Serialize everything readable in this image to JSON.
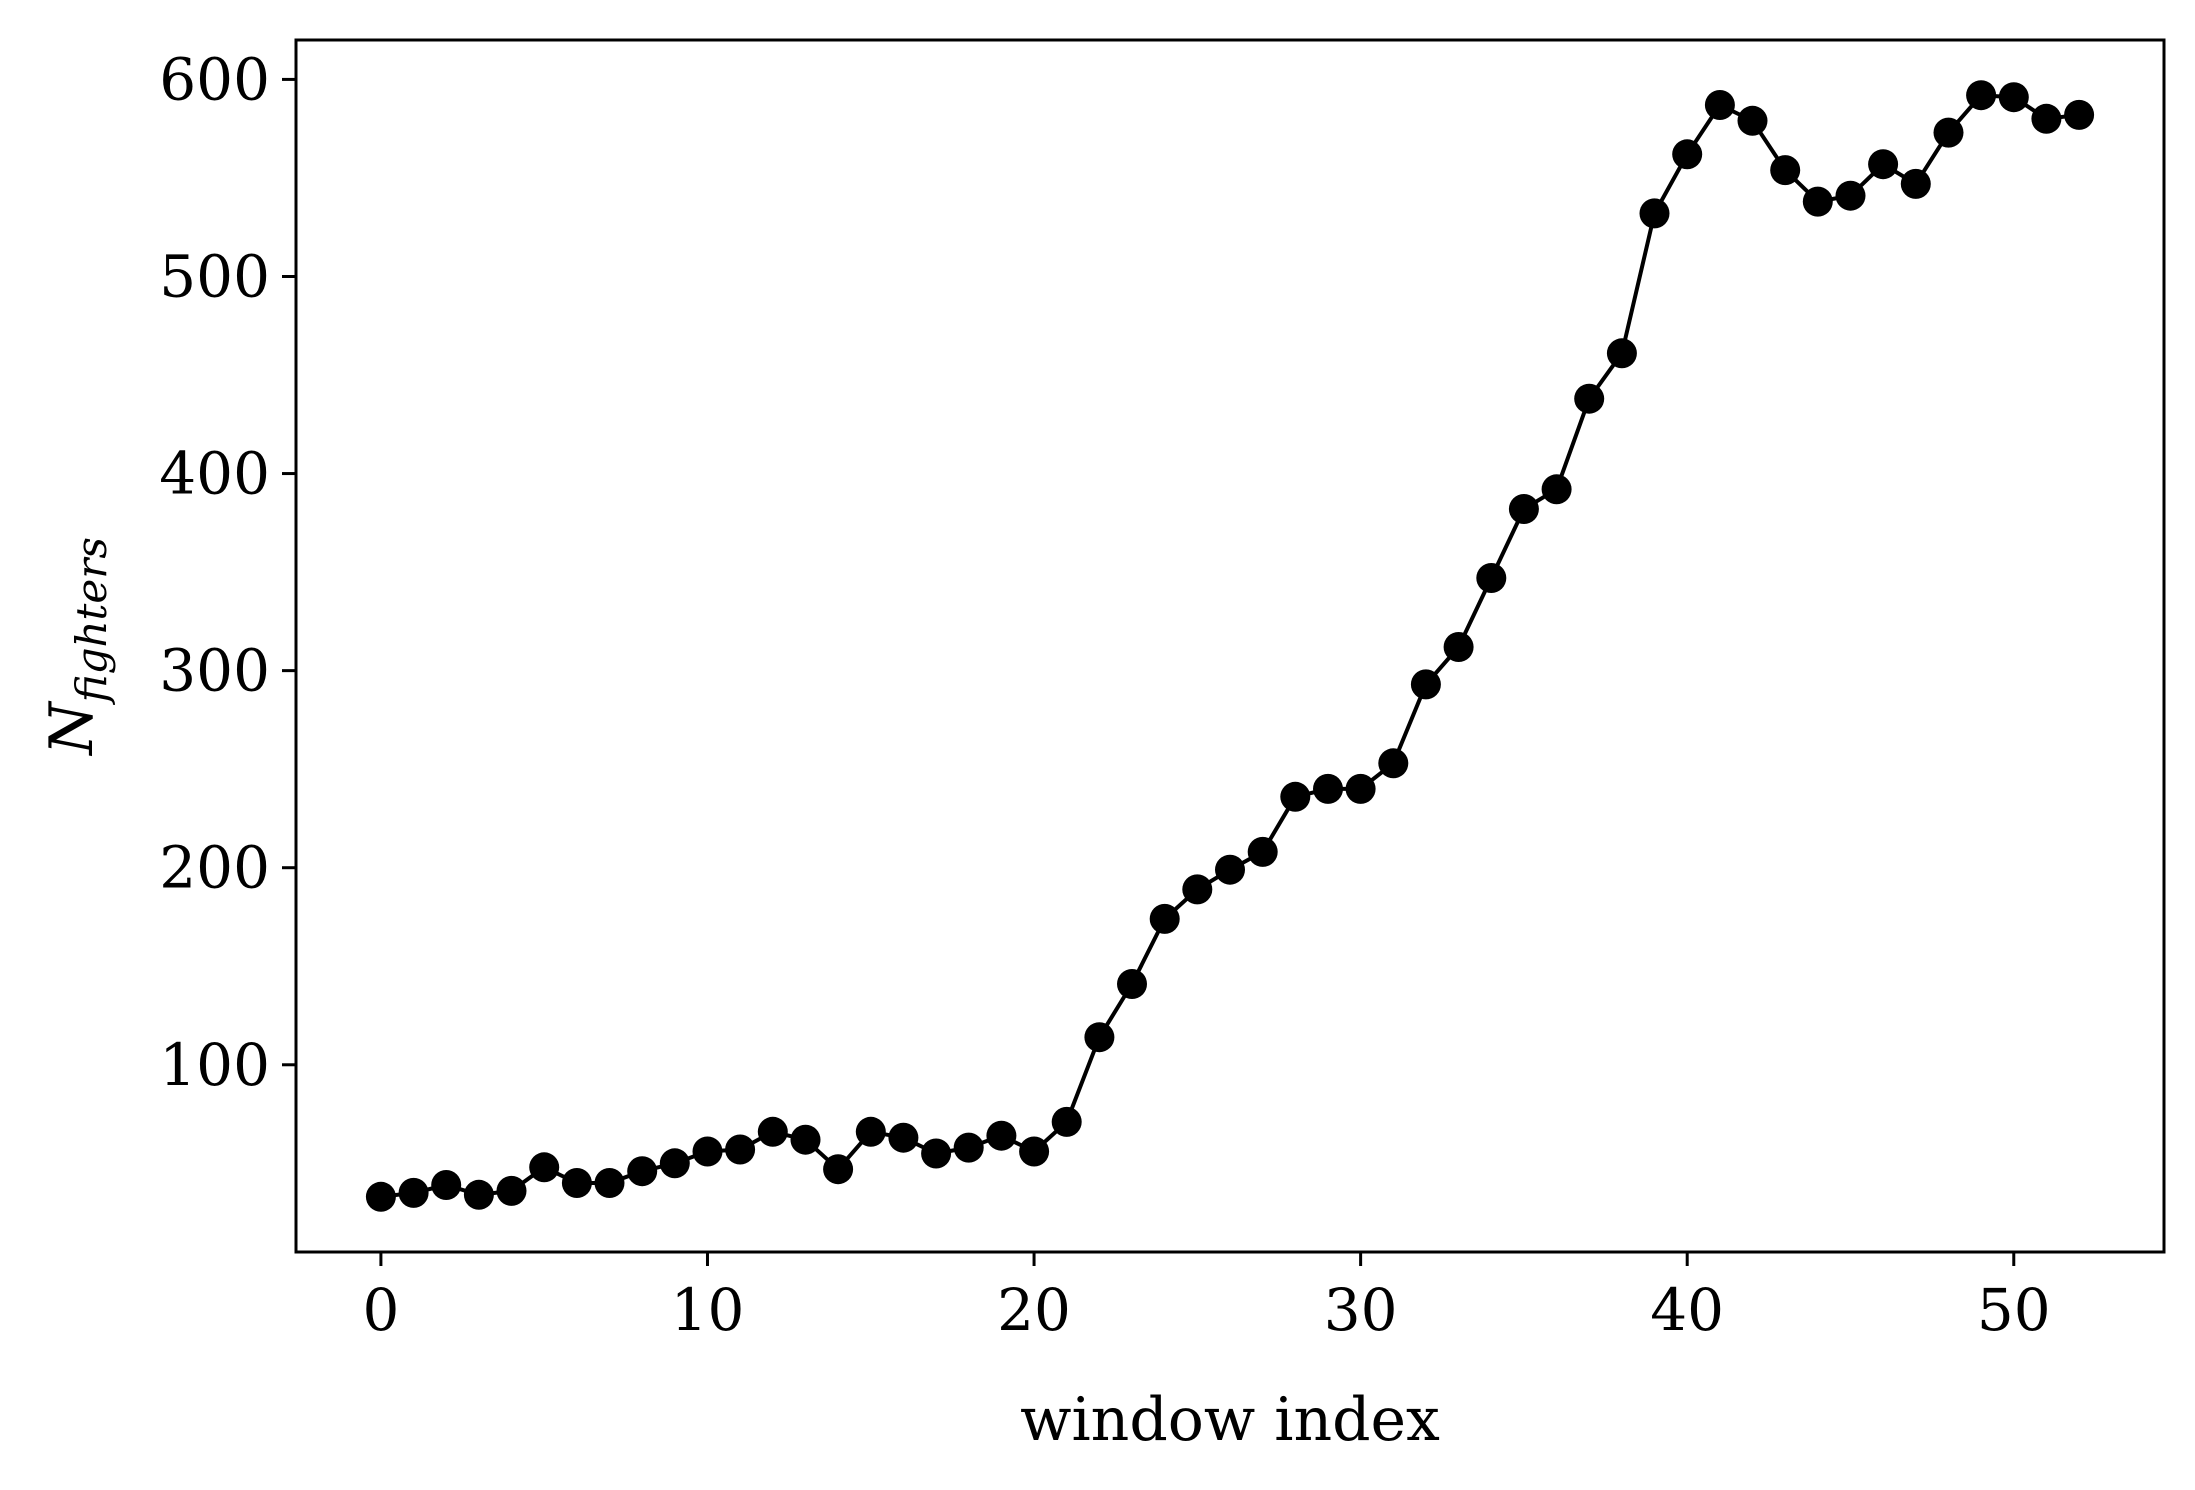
{
  "chart_data": {
    "type": "line",
    "title": "",
    "xlabel": "window index",
    "ylabel": {
      "main": "N",
      "subscript": "fighters"
    },
    "xlim": [
      -2.6,
      54.6
    ],
    "ylim": [
      5,
      620
    ],
    "xticks": [
      0,
      10,
      20,
      30,
      40,
      50
    ],
    "xtick_labels": [
      "0",
      "10",
      "20",
      "30",
      "40",
      "50"
    ],
    "yticks": [
      100,
      200,
      300,
      400,
      500,
      600
    ],
    "ytick_labels": [
      "100",
      "200",
      "300",
      "400",
      "500",
      "600"
    ],
    "grid": false,
    "legend": "none",
    "series": [
      {
        "color": "#000000",
        "marker": "circle",
        "x": [
          0,
          1,
          2,
          3,
          4,
          5,
          6,
          7,
          8,
          9,
          10,
          11,
          12,
          13,
          14,
          15,
          16,
          17,
          18,
          19,
          20,
          21,
          22,
          23,
          24,
          25,
          26,
          27,
          28,
          29,
          30,
          31,
          32,
          33,
          34,
          35,
          36,
          37,
          38,
          39,
          40,
          41,
          42,
          43,
          44,
          45,
          46,
          47,
          48,
          49,
          50,
          51,
          52
        ],
        "y": [
          33,
          35,
          39,
          34,
          36,
          48,
          40,
          40,
          46,
          50,
          56,
          57,
          66,
          62,
          47,
          66,
          63,
          55,
          58,
          64,
          56,
          71,
          114,
          141,
          174,
          189,
          199,
          208,
          236,
          240,
          240,
          253,
          293,
          312,
          347,
          382,
          392,
          438,
          461,
          532,
          562,
          587,
          579,
          554,
          538,
          541,
          557,
          547,
          573,
          592,
          591,
          580,
          582
        ]
      }
    ]
  }
}
